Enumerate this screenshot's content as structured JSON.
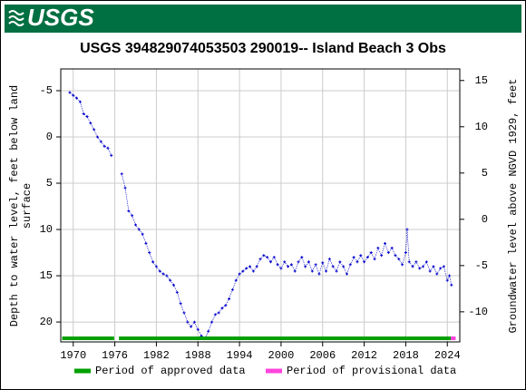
{
  "header": {
    "logo_text": "USGS"
  },
  "chart_data": {
    "type": "line",
    "title": "USGS 394829074053503 290019-- Island Beach 3 Obs",
    "ylabel_lines": [
      "Depth to water level, feet below land",
      "surface"
    ],
    "y2label": "Groundwater level above NGVD 1929, feet",
    "color": "#0000cc",
    "grid": true,
    "y_inverted": true,
    "xlim": [
      1968.2,
      2025.8
    ],
    "xticks": [
      1970,
      1976,
      1982,
      1988,
      1994,
      2000,
      2006,
      2012,
      2018,
      2024
    ],
    "ylim": [
      -7.35,
      22.15
    ],
    "yticks": [
      -5,
      0,
      5,
      10,
      15,
      20
    ],
    "y2lim": [
      -13.25,
      16.25
    ],
    "y2ticks": [
      -10,
      -5,
      0,
      5,
      10,
      15
    ],
    "x": [
      1969.5,
      1970,
      1970.5,
      1971,
      1971.5,
      1972,
      1972.5,
      1973,
      1973.5,
      1974,
      1974.5,
      1975,
      1975.5,
      1976.3,
      1977,
      1977.5,
      1978,
      1978.5,
      1979,
      1979.5,
      1980,
      1980.5,
      1981,
      1981.5,
      1982,
      1982.5,
      1983,
      1983.5,
      1984,
      1984.5,
      1985,
      1985.5,
      1986,
      1986.5,
      1987,
      1987.5,
      1988,
      1988.5,
      1989,
      1989.5,
      1990,
      1990.5,
      1991,
      1991.5,
      1992,
      1992.5,
      1993,
      1993.5,
      1994,
      1994.5,
      1995,
      1995.5,
      1996,
      1996.5,
      1997,
      1997.5,
      1998,
      1998.5,
      1999,
      1999.5,
      2000,
      2000.5,
      2001,
      2001.5,
      2002,
      2002.5,
      2003,
      2003.5,
      2004,
      2004.5,
      2005,
      2005.5,
      2006,
      2006.5,
      2007,
      2007.5,
      2008,
      2008.5,
      2009,
      2009.5,
      2010,
      2010.5,
      2011,
      2011.5,
      2012,
      2012.5,
      2013,
      2013.5,
      2014,
      2014.5,
      2015,
      2015.5,
      2016,
      2016.5,
      2017,
      2017.5,
      2018,
      2018.2,
      2018.5,
      2019,
      2019.5,
      2020,
      2020.5,
      2021,
      2021.5,
      2022,
      2022.5,
      2023,
      2023.5,
      2024,
      2024.3,
      2024.6
    ],
    "values": [
      -4.8,
      -4.5,
      -4.2,
      -3.8,
      -2.5,
      -2.2,
      -1.5,
      -0.8,
      0,
      0.5,
      1.0,
      1.2,
      2.0,
      null,
      4,
      5.5,
      8.0,
      8.5,
      9.5,
      10,
      10.5,
      11.5,
      12.5,
      13.5,
      14.0,
      14.5,
      14.8,
      15.0,
      15.5,
      16,
      16.8,
      18,
      19,
      20,
      20.5,
      20,
      20.8,
      21.5,
      21.8,
      21.0,
      20,
      19.2,
      19.0,
      18.5,
      18.2,
      17.5,
      16.5,
      15.5,
      14.8,
      14.5,
      14.2,
      14.0,
      14.5,
      14.0,
      13.2,
      12.8,
      13.0,
      13.5,
      13.0,
      13.8,
      14.2,
      13.5,
      14.0,
      13.8,
      14.5,
      13.5,
      13.0,
      14.0,
      13.5,
      14.5,
      13.8,
      14.8,
      13.6,
      14.5,
      13.2,
      14.0,
      14.5,
      13.5,
      14.0,
      14.8,
      13.8,
      13.0,
      13.5,
      12.8,
      13.5,
      13.0,
      12.5,
      13.2,
      12.0,
      12.8,
      11.5,
      12.5,
      12.0,
      12.8,
      13.2,
      13.8,
      12.5,
      10.0,
      13.5,
      14.0,
      13.5,
      14.2,
      14.0,
      13.5,
      14.5,
      14.0,
      14.8,
      14.2,
      14.0,
      15.5,
      15.0,
      16.0
    ],
    "periods": [
      {
        "name": "Period of approved data",
        "color": "#00a000",
        "ranges": [
          [
            1968.4,
            1975.9
          ],
          [
            1976.6,
            2024.5
          ]
        ]
      },
      {
        "name": "Period of provisional data",
        "color": "#ff44dd",
        "ranges": [
          [
            2024.5,
            2025.2
          ]
        ]
      }
    ]
  }
}
